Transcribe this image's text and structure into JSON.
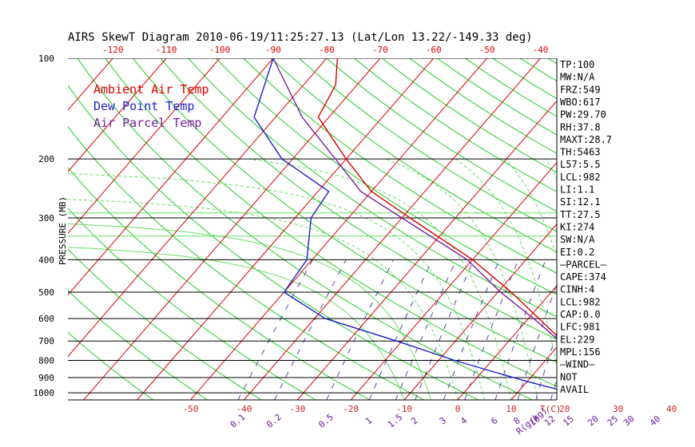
{
  "chart_data": {
    "type": "line",
    "title": "AIRS SkewT Diagram 2010-06-19/11:25:27.13 (Lat/Lon 13.22/-149.33 deg)",
    "ylabel": "PRESSURE (MB)",
    "pressure_ticks": [
      {
        "p": 100,
        "label": "100"
      },
      {
        "p": 200,
        "label": "200"
      },
      {
        "p": 300,
        "label": "300"
      },
      {
        "p": 400,
        "label": "400"
      },
      {
        "p": 500,
        "label": "500"
      },
      {
        "p": 600,
        "label": "600"
      },
      {
        "p": 700,
        "label": "700"
      },
      {
        "p": 800,
        "label": "800"
      },
      {
        "p": 900,
        "label": "900"
      },
      {
        "p": 1000,
        "label": "1000"
      }
    ],
    "top_temp_ticks": [
      "-120",
      "-110",
      "-100",
      "-90",
      "-80",
      "-70",
      "-60",
      "-50",
      "-40"
    ],
    "bottom_temp_ticks": [
      "-50",
      "-40",
      "-30",
      "-20",
      "-10",
      "0",
      "10",
      "20",
      "30",
      "40"
    ],
    "bottom_temp_unit": "T(C)",
    "mixing_ratio_labels": [
      "0.1",
      "0.2",
      "0.5",
      "1",
      "1.5",
      "2",
      "3",
      "4",
      "6",
      "8",
      "10",
      "12",
      "15",
      "20",
      "25",
      "30",
      "40",
      "R(g/kg)"
    ],
    "legend": [
      {
        "label": "Ambient Air Temp",
        "color": "#dd0000"
      },
      {
        "label": "Dew Point Temp",
        "color": "#1f1fcc"
      },
      {
        "label": "Air Parcel Temp",
        "color": "#7a1fa0"
      }
    ],
    "series": [
      {
        "name": "Ambient Air Temp",
        "color": "#dd0000",
        "points": [
          {
            "p": 1000,
            "t": 25.0
          },
          {
            "p": 980,
            "t": 22.0
          },
          {
            "p": 960,
            "t": 20.0
          },
          {
            "p": 925,
            "t": 19.5
          },
          {
            "p": 900,
            "t": 20.5
          },
          {
            "p": 850,
            "t": 19.5
          },
          {
            "p": 800,
            "t": 16.5
          },
          {
            "p": 700,
            "t": 10.0
          },
          {
            "p": 600,
            "t": 2.0
          },
          {
            "p": 500,
            "t": -7.5
          },
          {
            "p": 400,
            "t": -20.0
          },
          {
            "p": 300,
            "t": -38.5
          },
          {
            "p": 250,
            "t": -50.0
          },
          {
            "p": 200,
            "t": -60.0
          },
          {
            "p": 150,
            "t": -72.0
          },
          {
            "p": 120,
            "t": -74.0
          },
          {
            "p": 100,
            "t": -78.0
          }
        ]
      },
      {
        "name": "Dew Point Temp",
        "color": "#1f1fcc",
        "points": [
          {
            "p": 1000,
            "t": 20.0
          },
          {
            "p": 925,
            "t": 10.0
          },
          {
            "p": 850,
            "t": 0.0
          },
          {
            "p": 800,
            "t": -7.0
          },
          {
            "p": 700,
            "t": -21.0
          },
          {
            "p": 600,
            "t": -38.0
          },
          {
            "p": 500,
            "t": -50.0
          },
          {
            "p": 400,
            "t": -51.0
          },
          {
            "p": 300,
            "t": -57.0
          },
          {
            "p": 250,
            "t": -58.0
          },
          {
            "p": 200,
            "t": -72.0
          },
          {
            "p": 150,
            "t": -84.0
          },
          {
            "p": 100,
            "t": -90.0
          }
        ]
      },
      {
        "name": "Air Parcel Temp",
        "color": "#7a1fa0",
        "points": [
          {
            "p": 1000,
            "t": 25.0
          },
          {
            "p": 980,
            "t": 23.0
          },
          {
            "p": 960,
            "t": 21.5
          },
          {
            "p": 900,
            "t": 19.5
          },
          {
            "p": 850,
            "t": 18.0
          },
          {
            "p": 800,
            "t": 15.5
          },
          {
            "p": 700,
            "t": 9.5
          },
          {
            "p": 600,
            "t": 1.0
          },
          {
            "p": 500,
            "t": -9.5
          },
          {
            "p": 400,
            "t": -21.0
          },
          {
            "p": 300,
            "t": -40.0
          },
          {
            "p": 250,
            "t": -52.0
          },
          {
            "p": 200,
            "t": -62.0
          },
          {
            "p": 150,
            "t": -75.0
          },
          {
            "p": 100,
            "t": -90.0
          }
        ]
      }
    ],
    "stats": [
      "TP:100",
      "MW:N/A",
      "FRZ:549",
      "WBO:617",
      "PW:29.70",
      "RH:37.8",
      "MAXT:28.7",
      "TH:5463",
      "L57:5.5",
      "LCL:982",
      "LI:1.1",
      "SI:12.1",
      "TT:27.5",
      "KI:274",
      "SW:N/A",
      "EI:0.2",
      "—PARCEL—",
      "CAPE:374",
      "CINH:4",
      "LCL:982",
      "CAP:0.0",
      "LFC:981",
      "EL:229",
      "MPL:156",
      "—WIND—",
      "NOT",
      "AVAIL"
    ],
    "colors": {
      "isobar": "#000000",
      "isotherm": "#dd0000",
      "dry_adiabat": "#22cc22",
      "moist_adiabat": "#66dd66",
      "mixing_ratio": "#5544aa",
      "top_axis_text": "#dd0000",
      "bottom_axis_text": "#cc2222",
      "mixing_text": "#6a1a9a"
    }
  }
}
